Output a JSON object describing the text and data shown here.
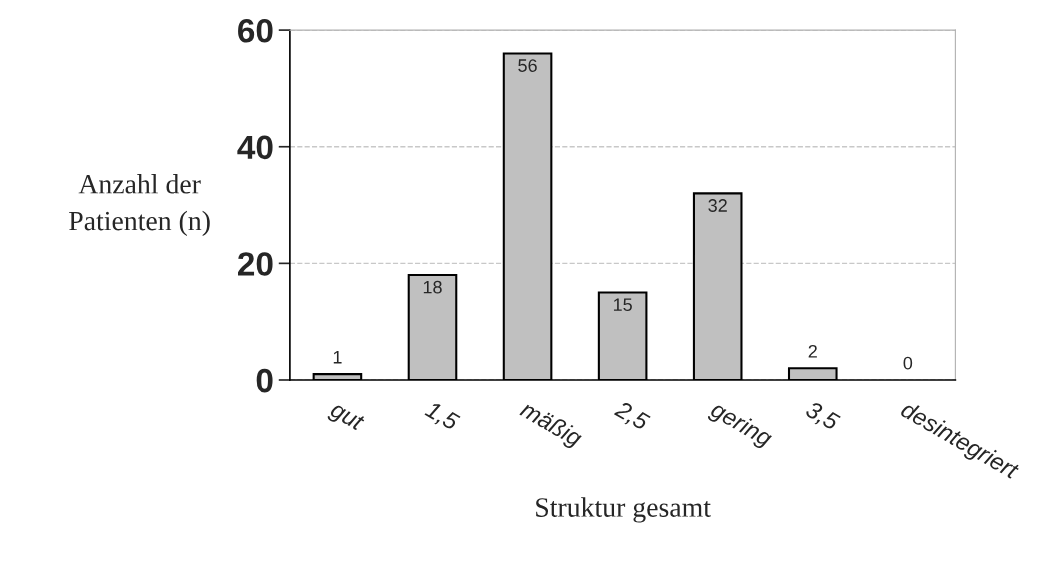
{
  "chart_data": {
    "type": "bar",
    "categories": [
      "gut",
      "1,5",
      "mäßig",
      "2,5",
      "gering",
      "3,5",
      "desintegriert"
    ],
    "values": [
      1,
      18,
      56,
      15,
      32,
      2,
      0
    ],
    "color": "#c0c0c0",
    "xlabel": "Struktur gesamt",
    "ylabel": "Anzahl der\nPatienten (n)",
    "ylim": [
      0,
      60
    ],
    "yticks": [
      0,
      20,
      40,
      60
    ],
    "grid": "y",
    "data_labels": true,
    "legend": false
  }
}
